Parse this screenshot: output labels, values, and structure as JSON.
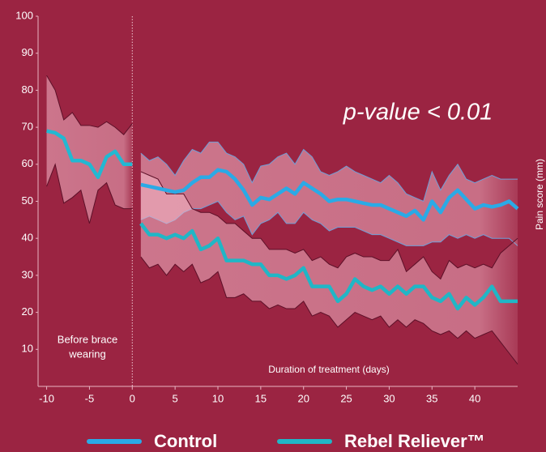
{
  "chart_data": {
    "type": "line",
    "annotations": {
      "p_value": "p-value < 0.01",
      "before_brace": [
        "Before brace",
        "wearing"
      ],
      "x_label": "Duration of treatment (days)",
      "y_label": "Pain score (mm)"
    },
    "xlim": [
      -11,
      45
    ],
    "xticks": [
      -10,
      -5,
      0,
      5,
      10,
      15,
      20,
      25,
      30,
      35,
      40
    ],
    "ylim": [
      0,
      100
    ],
    "yticks": [
      10,
      20,
      30,
      40,
      50,
      60,
      70,
      80,
      90,
      100
    ],
    "divider_x": 0,
    "series": [
      {
        "color": "#22b8d2",
        "band_edge": "#5c1028",
        "x": [
          -10,
          -9,
          -8,
          -7,
          -6,
          -5,
          -4,
          -3,
          -2,
          -1,
          0
        ],
        "values": [
          69,
          68.5,
          67,
          61,
          61,
          60,
          56.5,
          62,
          63.5,
          60,
          60
        ],
        "upper": [
          84,
          80,
          72,
          74,
          70.5,
          70.5,
          70,
          71.5,
          70,
          68,
          71
        ],
        "lower": [
          54,
          60,
          49.5,
          51,
          53,
          44,
          53,
          55,
          49,
          48,
          48
        ]
      },
      {
        "name": "Control",
        "color": "#2aaae6",
        "band_edge": "#6f9fd8",
        "x": [
          1,
          2,
          3,
          4,
          5,
          6,
          7,
          8,
          9,
          10,
          11,
          12,
          13,
          14,
          15,
          16,
          17,
          18,
          19,
          20,
          21,
          22,
          23,
          24,
          25,
          26,
          27,
          28,
          29,
          30,
          31,
          32,
          33,
          34,
          35,
          36,
          37,
          38,
          39,
          40,
          41,
          42,
          43,
          44,
          45
        ],
        "values": [
          54.5,
          54,
          53.5,
          53,
          52.5,
          53,
          55,
          56.5,
          56.5,
          58.5,
          58,
          56,
          53,
          49,
          51,
          50.5,
          52,
          53.5,
          52,
          55,
          53.5,
          52,
          50,
          50.5,
          50.5,
          50,
          49.5,
          49,
          49,
          48,
          47,
          46,
          47.5,
          45,
          50,
          47,
          51,
          53,
          50.5,
          48,
          49,
          48.5,
          49,
          50,
          48
        ],
        "upper": [
          63,
          61,
          62,
          60,
          57,
          61,
          64,
          63,
          66,
          66,
          63,
          62,
          60,
          55,
          59.5,
          60,
          62,
          63,
          60,
          64,
          62,
          58,
          57,
          58,
          59.5,
          58,
          57,
          56,
          55,
          57,
          55,
          52,
          51,
          50,
          58,
          53,
          57,
          60,
          56,
          55,
          56,
          57,
          56,
          56,
          56
        ],
        "lower": [
          45,
          46,
          45,
          44,
          45,
          47,
          48,
          48,
          49,
          50,
          47,
          45,
          46,
          41,
          44,
          45,
          47,
          44,
          44,
          47,
          45,
          44,
          42,
          43,
          43,
          43,
          42,
          41,
          41,
          40,
          39,
          38,
          38,
          38,
          39,
          39,
          41,
          40,
          41,
          40,
          41,
          40,
          40,
          40,
          38
        ]
      },
      {
        "name": "Rebel Reliever™",
        "color": "#20b6c6",
        "band_edge": "#5c1028",
        "x": [
          1,
          2,
          3,
          4,
          5,
          6,
          7,
          8,
          9,
          10,
          11,
          12,
          13,
          14,
          15,
          16,
          17,
          18,
          19,
          20,
          21,
          22,
          23,
          24,
          25,
          26,
          27,
          28,
          29,
          30,
          31,
          32,
          33,
          34,
          35,
          36,
          37,
          38,
          39,
          40,
          41,
          42,
          43,
          44,
          45
        ],
        "values": [
          44,
          41,
          41,
          40,
          41,
          40,
          42,
          37,
          38,
          40,
          34,
          34,
          34,
          33,
          33,
          30,
          30,
          29,
          30,
          32,
          27,
          27,
          27,
          23,
          25,
          29,
          27,
          26,
          27,
          25,
          27,
          25,
          27,
          27,
          24,
          23,
          25,
          21,
          24,
          22,
          24,
          27,
          23,
          23,
          23
        ],
        "upper": [
          58,
          57,
          56,
          52,
          52,
          52,
          48,
          47,
          47,
          46,
          44,
          44,
          42,
          40,
          40,
          37,
          37,
          37,
          36,
          37,
          34,
          35,
          33,
          32,
          35,
          36,
          35,
          35,
          34,
          34,
          37,
          31,
          33,
          35,
          31,
          29,
          34,
          32,
          33,
          32,
          33,
          32,
          36,
          38,
          40
        ],
        "lower": [
          35,
          32,
          33,
          30,
          33,
          31,
          33,
          28,
          29,
          31,
          24,
          24,
          25,
          23,
          23,
          21,
          22,
          21,
          21,
          23,
          19,
          20,
          19,
          16,
          18,
          20,
          19,
          18,
          19,
          16,
          18,
          16,
          18,
          17,
          15,
          14,
          15,
          13,
          15,
          13,
          14,
          15,
          12,
          9,
          6
        ]
      }
    ]
  }
}
